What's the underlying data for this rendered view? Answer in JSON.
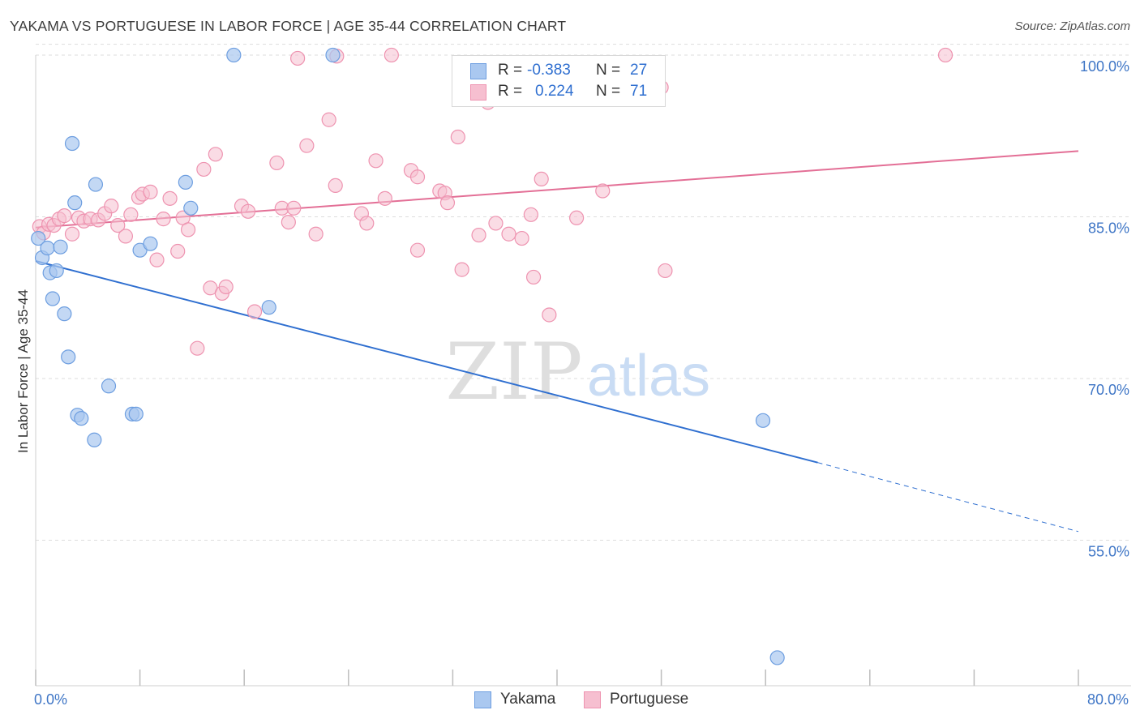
{
  "header": {
    "title": "YAKAMA VS PORTUGUESE IN LABOR FORCE | AGE 35-44 CORRELATION CHART",
    "source": "Source: ZipAtlas.com"
  },
  "watermark": {
    "zip": "ZIP",
    "atlas": "atlas"
  },
  "legend": {
    "rows": [
      {
        "r_label": "R =",
        "r_value": "-0.383",
        "n_label": "N =",
        "n_value": "27"
      },
      {
        "r_label": "R =",
        "r_value": "0.224",
        "n_label": "N =",
        "n_value": "71"
      }
    ]
  },
  "colors": {
    "yakama_fill": "#aac8f0",
    "yakama_stroke": "#6d9ee0",
    "yakama_line": "#2f6fd0",
    "portuguese_fill": "#f6bfd0",
    "portuguese_stroke": "#ee93b0",
    "portuguese_line": "#e36f96",
    "tick_label": "#3f76c6",
    "grid": "#dddddd"
  },
  "chart_data": {
    "type": "scatter",
    "title": "YAKAMA VS PORTUGUESE IN LABOR FORCE | AGE 35-44 CORRELATION CHART",
    "xlabel": "",
    "ylabel": "In Labor Force | Age 35-44",
    "xlim": [
      0,
      80
    ],
    "ylim": [
      41.5,
      101.5
    ],
    "x_tick_labels": [
      {
        "value": 0,
        "label": "0.0%"
      },
      {
        "value": 80,
        "label": "80.0%"
      }
    ],
    "y_tick_labels": [
      {
        "value": 100,
        "label": "100.0%"
      },
      {
        "value": 85,
        "label": "85.0%"
      },
      {
        "value": 70,
        "label": "70.0%"
      },
      {
        "value": 55,
        "label": "55.0%"
      }
    ],
    "grid": true,
    "legend_position": "top-center",
    "series": [
      {
        "name": "Yakama",
        "r": -0.383,
        "n": 27,
        "points": [
          [
            0.2,
            83.0
          ],
          [
            0.5,
            81.2
          ],
          [
            0.9,
            82.1
          ],
          [
            1.1,
            79.8
          ],
          [
            1.3,
            77.4
          ],
          [
            1.6,
            80.0
          ],
          [
            1.9,
            82.2
          ],
          [
            2.2,
            76.0
          ],
          [
            2.5,
            72.0
          ],
          [
            2.8,
            91.8
          ],
          [
            3.0,
            86.3
          ],
          [
            3.2,
            66.6
          ],
          [
            3.5,
            66.3
          ],
          [
            4.5,
            64.3
          ],
          [
            4.6,
            88.0
          ],
          [
            5.6,
            69.3
          ],
          [
            7.4,
            66.7
          ],
          [
            7.7,
            66.7
          ],
          [
            8.0,
            81.9
          ],
          [
            8.8,
            82.5
          ],
          [
            11.5,
            88.2
          ],
          [
            11.9,
            85.8
          ],
          [
            15.2,
            100.0
          ],
          [
            17.9,
            76.6
          ],
          [
            22.8,
            100.0
          ],
          [
            55.8,
            66.1
          ],
          [
            56.9,
            44.1
          ]
        ],
        "trend": {
          "x1": 0,
          "y1": 80.9,
          "x2": 60.0,
          "y2": 62.2,
          "dashed_to_x": 80.0,
          "dashed_to_y": 55.8
        }
      },
      {
        "name": "Portuguese",
        "r": 0.224,
        "n": 71,
        "points": [
          [
            0.3,
            84.1
          ],
          [
            0.6,
            83.5
          ],
          [
            1.0,
            84.3
          ],
          [
            1.4,
            84.2
          ],
          [
            1.8,
            84.8
          ],
          [
            2.2,
            85.1
          ],
          [
            2.8,
            83.4
          ],
          [
            3.3,
            84.9
          ],
          [
            3.7,
            84.6
          ],
          [
            4.2,
            84.8
          ],
          [
            4.8,
            84.7
          ],
          [
            5.3,
            85.3
          ],
          [
            5.8,
            86.0
          ],
          [
            6.3,
            84.2
          ],
          [
            6.9,
            83.2
          ],
          [
            7.3,
            85.2
          ],
          [
            7.9,
            86.8
          ],
          [
            8.2,
            87.1
          ],
          [
            8.8,
            87.3
          ],
          [
            9.3,
            81.0
          ],
          [
            9.8,
            84.8
          ],
          [
            10.3,
            86.7
          ],
          [
            10.9,
            81.8
          ],
          [
            11.3,
            84.9
          ],
          [
            11.7,
            83.8
          ],
          [
            12.9,
            89.4
          ],
          [
            13.4,
            78.4
          ],
          [
            13.8,
            90.8
          ],
          [
            14.3,
            77.9
          ],
          [
            14.6,
            78.5
          ],
          [
            15.8,
            86.0
          ],
          [
            16.3,
            85.5
          ],
          [
            16.8,
            76.2
          ],
          [
            18.5,
            90.0
          ],
          [
            18.9,
            85.8
          ],
          [
            19.4,
            84.5
          ],
          [
            19.8,
            85.8
          ],
          [
            12.4,
            72.8
          ],
          [
            20.1,
            99.7
          ],
          [
            20.8,
            91.6
          ],
          [
            21.5,
            83.4
          ],
          [
            22.5,
            94.0
          ],
          [
            23.0,
            87.9
          ],
          [
            23.1,
            99.9
          ],
          [
            25.0,
            85.3
          ],
          [
            25.4,
            84.4
          ],
          [
            26.1,
            90.2
          ],
          [
            26.8,
            86.7
          ],
          [
            27.3,
            100.0
          ],
          [
            28.8,
            89.3
          ],
          [
            29.3,
            88.7
          ],
          [
            29.3,
            81.9
          ],
          [
            31.0,
            87.4
          ],
          [
            31.4,
            87.2
          ],
          [
            31.6,
            86.3
          ],
          [
            32.4,
            92.4
          ],
          [
            32.7,
            80.1
          ],
          [
            34.0,
            83.3
          ],
          [
            34.7,
            95.6
          ],
          [
            35.3,
            84.4
          ],
          [
            36.3,
            83.4
          ],
          [
            37.3,
            83.0
          ],
          [
            38.0,
            85.2
          ],
          [
            38.2,
            79.4
          ],
          [
            38.8,
            88.5
          ],
          [
            39.4,
            75.9
          ],
          [
            41.5,
            84.9
          ],
          [
            43.5,
            87.4
          ],
          [
            48.0,
            97.0
          ],
          [
            48.3,
            80.0
          ],
          [
            69.8,
            100.0
          ]
        ],
        "trend": {
          "x1": 0,
          "y1": 84.0,
          "x2": 80.0,
          "y2": 91.1
        }
      }
    ]
  },
  "bottom_legend": [
    {
      "label": "Yakama"
    },
    {
      "label": "Portuguese"
    }
  ]
}
